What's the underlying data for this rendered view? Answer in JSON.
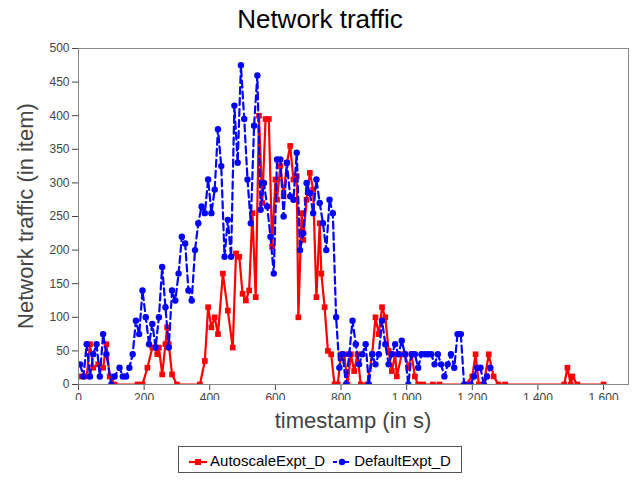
{
  "chart_data": {
    "type": "line",
    "title": "Network traffic",
    "x_label": "timestamp (in s)",
    "y_label": "Network traffic (in item)",
    "xlim": [
      0,
      1676
    ],
    "ylim": [
      0,
      500
    ],
    "xticks": [
      0,
      200,
      400,
      600,
      800,
      {
        "value": 1000,
        "label": "1 000"
      },
      {
        "value": 1200,
        "label": "1 200"
      },
      {
        "value": 1400,
        "label": "1 400"
      },
      {
        "value": 1600,
        "label": "1 600"
      }
    ],
    "yticks": [
      0,
      50,
      100,
      150,
      200,
      250,
      300,
      350,
      400,
      450,
      500
    ],
    "grid": false,
    "legend": "bottom",
    "series": [
      {
        "name": "AutoscaleExpt_D",
        "color": "#ff0000",
        "marker": "square",
        "line_style": "solid",
        "x": [
          10,
          25,
          35,
          45,
          60,
          75,
          85,
          95,
          110,
          180,
          195,
          210,
          225,
          235,
          240,
          245,
          255,
          265,
          270,
          275,
          285,
          300,
          370,
          385,
          395,
          405,
          415,
          425,
          440,
          455,
          470,
          480,
          490,
          500,
          510,
          520,
          530,
          540,
          550,
          560,
          570,
          580,
          590,
          600,
          605,
          615,
          625,
          635,
          645,
          655,
          665,
          670,
          680,
          685,
          695,
          705,
          715,
          725,
          735,
          740,
          750,
          760,
          770,
          780,
          790,
          800,
          810,
          820,
          830,
          840,
          850,
          860,
          880,
          895,
          905,
          915,
          925,
          935,
          945,
          955,
          965,
          970,
          985,
          995,
          1005,
          1015,
          1025,
          1035,
          1050,
          1080,
          1100,
          1180,
          1200,
          1210,
          1220,
          1235,
          1250,
          1265,
          1280,
          1300,
          1480,
          1490,
          1500,
          1505,
          1520,
          1600
        ],
        "values": [
          12,
          12,
          60,
          25,
          30,
          25,
          60,
          12,
          0,
          0,
          0,
          25,
          55,
          55,
          45,
          55,
          15,
          60,
          85,
          60,
          15,
          0,
          0,
          35,
          115,
          85,
          100,
          75,
          165,
          110,
          55,
          195,
          190,
          135,
          125,
          140,
          255,
          130,
          400,
          270,
          395,
          395,
          205,
          305,
          275,
          325,
          280,
          330,
          355,
          305,
          310,
          100,
          255,
          215,
          275,
          315,
          290,
          130,
          240,
          165,
          115,
          50,
          45,
          0,
          0,
          45,
          45,
          0,
          45,
          20,
          45,
          0,
          0,
          45,
          100,
          75,
          115,
          100,
          50,
          20,
          45,
          12,
          45,
          45,
          25,
          45,
          12,
          0,
          0,
          0,
          0,
          0,
          12,
          45,
          0,
          0,
          45,
          12,
          0,
          0,
          0,
          25,
          0,
          12,
          0,
          0
        ]
      },
      {
        "name": "DefaultExpt_D",
        "color": "#0000ff",
        "marker": "circle",
        "line_style": "dashed",
        "x": [
          5,
          15,
          25,
          35,
          45,
          55,
          65,
          75,
          85,
          100,
          110,
          125,
          135,
          145,
          155,
          165,
          175,
          185,
          195,
          205,
          215,
          225,
          235,
          245,
          255,
          265,
          275,
          285,
          295,
          305,
          315,
          325,
          335,
          345,
          355,
          365,
          375,
          385,
          395,
          405,
          415,
          425,
          435,
          445,
          455,
          465,
          475,
          485,
          495,
          505,
          515,
          525,
          535,
          545,
          555,
          565,
          575,
          585,
          595,
          605,
          615,
          625,
          635,
          645,
          655,
          665,
          675,
          685,
          695,
          705,
          715,
          725,
          735,
          745,
          755,
          765,
          775,
          785,
          795,
          805,
          815,
          825,
          835,
          845,
          855,
          865,
          875,
          885,
          895,
          905,
          915,
          925,
          935,
          945,
          955,
          965,
          975,
          985,
          995,
          1005,
          1015,
          1025,
          1035,
          1045,
          1055,
          1065,
          1075,
          1085,
          1095,
          1105,
          1115,
          1125,
          1135,
          1145,
          1155,
          1165,
          1175,
          1195,
          1205,
          1215,
          1225,
          1235,
          1245,
          1255
        ],
        "values": [
          30,
          12,
          60,
          12,
          45,
          60,
          12,
          75,
          45,
          0,
          12,
          25,
          12,
          12,
          25,
          45,
          95,
          75,
          140,
          100,
          60,
          90,
          55,
          100,
          175,
          115,
          55,
          140,
          125,
          165,
          220,
          210,
          140,
          125,
          200,
          240,
          265,
          255,
          305,
          255,
          290,
          380,
          325,
          190,
          245,
          190,
          415,
          330,
          475,
          395,
          305,
          240,
          385,
          460,
          260,
          300,
          265,
          220,
          165,
          335,
          335,
          250,
          330,
          280,
          275,
          345,
          200,
          225,
          300,
          285,
          255,
          305,
          270,
          240,
          200,
          275,
          255,
          100,
          25,
          45,
          0,
          45,
          95,
          60,
          30,
          45,
          60,
          0,
          45,
          30,
          45,
          95,
          60,
          30,
          45,
          60,
          45,
          65,
          45,
          0,
          45,
          45,
          25,
          45,
          45,
          45,
          45,
          30,
          45,
          30,
          12,
          30,
          45,
          25,
          75,
          75,
          0,
          0,
          12,
          25,
          25,
          0,
          12,
          25
        ]
      }
    ]
  }
}
